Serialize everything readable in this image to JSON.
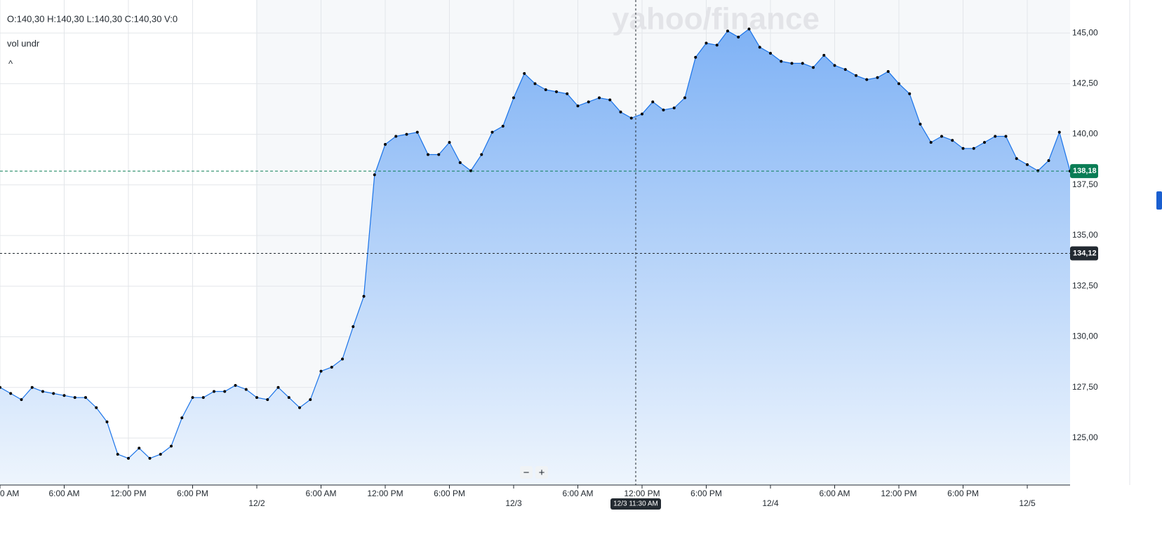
{
  "chart_data": {
    "type": "area",
    "ohlc_legend": "O:140,30  H:140,30  L:140,30  C:140,30  V:0",
    "indicator": "vol undr",
    "collapse": "^",
    "watermark": "yahoo/finance",
    "categories": [
      "0 AM",
      null,
      null,
      null,
      null,
      null,
      "6:00 AM",
      null,
      null,
      null,
      null,
      null,
      "12:00 PM",
      null,
      null,
      null,
      null,
      null,
      "6:00 PM",
      null,
      null,
      null,
      null,
      null,
      "12/2",
      null,
      null,
      null,
      null,
      null,
      "6:00 AM",
      null,
      null,
      null,
      null,
      null,
      "12:00 PM",
      null,
      null,
      null,
      null,
      null,
      "6:00 PM",
      null,
      null,
      null,
      null,
      null,
      "12/3",
      null,
      null,
      null,
      null,
      null,
      "6:00 AM",
      null,
      null,
      null,
      null,
      null,
      "12:00 PM",
      null,
      null,
      null,
      null,
      null,
      "6:00 PM",
      null,
      null,
      null,
      null,
      null,
      "12/4",
      null,
      null,
      null,
      null,
      null,
      "6:00 AM",
      null,
      null,
      null,
      null,
      null,
      "12:00 PM",
      null,
      null,
      null,
      null,
      null,
      "6:00 PM",
      null,
      null,
      null,
      null,
      null,
      "12/5",
      null,
      null,
      null,
      null
    ],
    "series": [
      {
        "color": "#1a73e8",
        "values": [
          127.5,
          127.2,
          126.9,
          127.5,
          127.3,
          127.2,
          127.1,
          127.0,
          127.0,
          126.5,
          125.8,
          124.2,
          124.0,
          124.5,
          124.0,
          124.2,
          124.6,
          126.0,
          127.0,
          127.0,
          127.3,
          127.3,
          127.6,
          127.4,
          127.0,
          126.9,
          127.5,
          127.0,
          126.5,
          126.9,
          128.3,
          128.5,
          128.9,
          130.5,
          132.0,
          138.0,
          139.5,
          139.9,
          140.0,
          140.1,
          139.0,
          139.0,
          139.6,
          138.6,
          138.2,
          139.0,
          140.1,
          140.4,
          141.8,
          143.0,
          142.5,
          142.2,
          142.1,
          142.0,
          141.4,
          141.6,
          141.8,
          141.7,
          141.1,
          140.8,
          141.0,
          141.6,
          141.2,
          141.3,
          141.8,
          143.8,
          144.5,
          144.4,
          145.1,
          144.8,
          145.2,
          144.3,
          144.0,
          143.6,
          143.5,
          143.5,
          143.3,
          143.9,
          143.4,
          143.2,
          142.9,
          142.7,
          142.8,
          143.1,
          142.5,
          142.0,
          140.5,
          139.6,
          139.9,
          139.7,
          139.3,
          139.3,
          139.6,
          139.9,
          139.9,
          138.8,
          138.5,
          138.2,
          138.7,
          140.1,
          138.18
        ]
      }
    ],
    "ylim": [
      122.68,
      146.63
    ],
    "yticks": [
      {
        "value": 125,
        "label": "125,00"
      },
      {
        "value": 127.5,
        "label": "127,50"
      },
      {
        "value": 130,
        "label": "130,00"
      },
      {
        "value": 132.5,
        "label": "132,50"
      },
      {
        "value": 135,
        "label": "135,00"
      },
      {
        "value": 137.5,
        "label": "137,50"
      },
      {
        "value": 140,
        "label": "140,00"
      },
      {
        "value": 142.5,
        "label": "142,50"
      },
      {
        "value": 145,
        "label": "145,00"
      }
    ],
    "grid": true,
    "last_price": {
      "value": 138.18,
      "label": "138,18"
    },
    "crosshair": {
      "x_label": "12/3 11:30 AM",
      "y": {
        "value": 134.12,
        "label": "134,12"
      }
    },
    "zoom_controls": [
      "−",
      "+"
    ]
  }
}
